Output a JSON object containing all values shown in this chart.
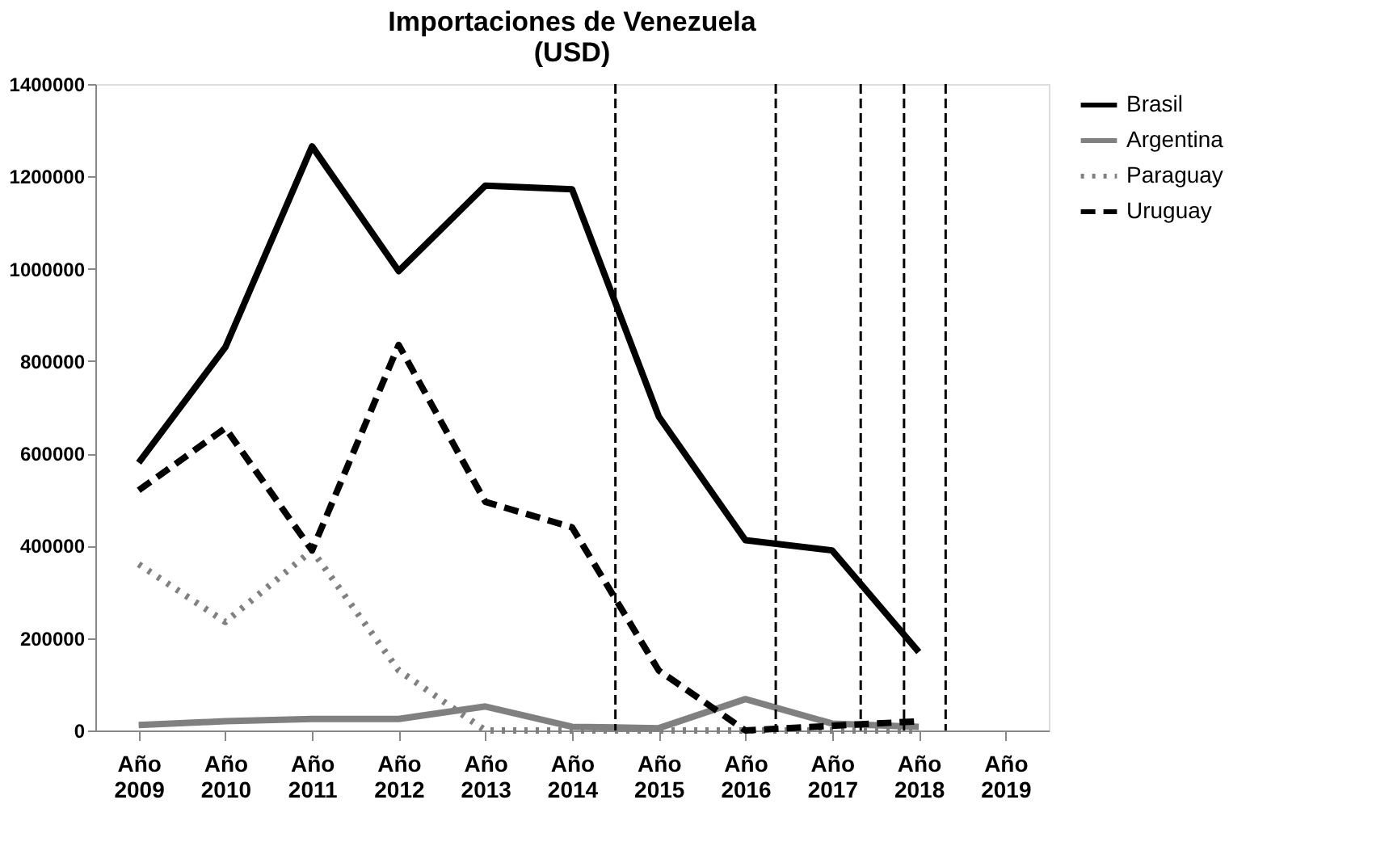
{
  "chart_data": {
    "type": "line",
    "title": "Importaciones de Venezuela\n(USD)",
    "categories": [
      "Año 2009",
      "Año 2010",
      "Año 2011",
      "Año 2012",
      "Año 2013",
      "Año 2014",
      "Año 2015",
      "Año 2016",
      "Año 2017",
      "Año 2018",
      "Año 2019"
    ],
    "ylim": [
      0,
      1400000
    ],
    "yticks": [
      0,
      200000,
      400000,
      600000,
      800000,
      1000000,
      1200000,
      1400000
    ],
    "series": [
      {
        "name": "Brasil",
        "color": "#000000",
        "line_style": "solid",
        "values": [
          580000,
          830000,
          1265000,
          995000,
          1180000,
          1172000,
          680000,
          412000,
          390000,
          170000,
          null
        ]
      },
      {
        "name": "Argentina",
        "color": "#808080",
        "line_style": "solid",
        "values": [
          12000,
          20000,
          25000,
          25000,
          52000,
          8000,
          5000,
          68000,
          15000,
          8000,
          null
        ]
      },
      {
        "name": "Paraguay",
        "color": "#808080",
        "line_style": "dotted",
        "values": [
          360000,
          235000,
          390000,
          130000,
          0,
          0,
          0,
          0,
          0,
          0,
          null
        ]
      },
      {
        "name": "Uruguay",
        "color": "#000000",
        "line_style": "dashed",
        "values": [
          520000,
          655000,
          390000,
          835000,
          495000,
          440000,
          130000,
          0,
          10000,
          20000,
          null
        ]
      }
    ],
    "grid": false,
    "legend": "right",
    "marker": "none"
  }
}
